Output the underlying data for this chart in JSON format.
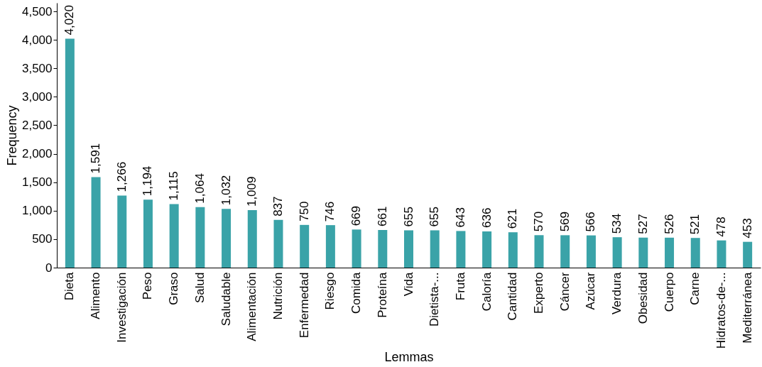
{
  "chart_data": {
    "type": "bar",
    "xlabel": "Lemmas",
    "ylabel": "Frequency",
    "categories": [
      "Dieta",
      "Alimento",
      "Investigación",
      "Peso",
      "Graso",
      "Salud",
      "Saludable",
      "Alimentación",
      "Nutrición",
      "Enfermedad",
      "Riesgo",
      "Comida",
      "Proteína",
      "Vida",
      "Dietista-...",
      "Fruta",
      "Caloría",
      "Cantidad",
      "Experto",
      "Cáncer",
      "Azúcar",
      "Verdura",
      "Obesidad",
      "Cuerpo",
      "Carne",
      "Hidratos-de-...",
      "Mediterránea"
    ],
    "values": [
      4020,
      1591,
      1266,
      1194,
      1115,
      1064,
      1032,
      1009,
      837,
      750,
      746,
      669,
      661,
      655,
      655,
      643,
      636,
      621,
      570,
      569,
      566,
      534,
      527,
      526,
      521,
      478,
      453
    ],
    "value_labels": [
      "4,020",
      "1,591",
      "1,266",
      "1,194",
      "1,115",
      "1,064",
      "1,032",
      "1,009",
      "837",
      "750",
      "746",
      "669",
      "661",
      "655",
      "655",
      "643",
      "636",
      "621",
      "570",
      "569",
      "566",
      "534",
      "527",
      "526",
      "521",
      "478",
      "453"
    ],
    "color": "#3aa3a8",
    "ylim": [
      0,
      4650
    ],
    "yticks": [
      0,
      {
        "value": 500,
        "label": "500"
      },
      {
        "value": 1000,
        "label": "1,000"
      },
      {
        "value": 1500,
        "label": "1,500"
      },
      {
        "value": 2000,
        "label": "2,000"
      },
      {
        "value": 2500,
        "label": "2,500"
      },
      {
        "value": 3000,
        "label": "3,000"
      },
      {
        "value": 3500,
        "label": "3,500"
      },
      {
        "value": 4000,
        "label": "4,000"
      },
      {
        "value": 4500,
        "label": "4,500"
      }
    ],
    "grid": false
  }
}
